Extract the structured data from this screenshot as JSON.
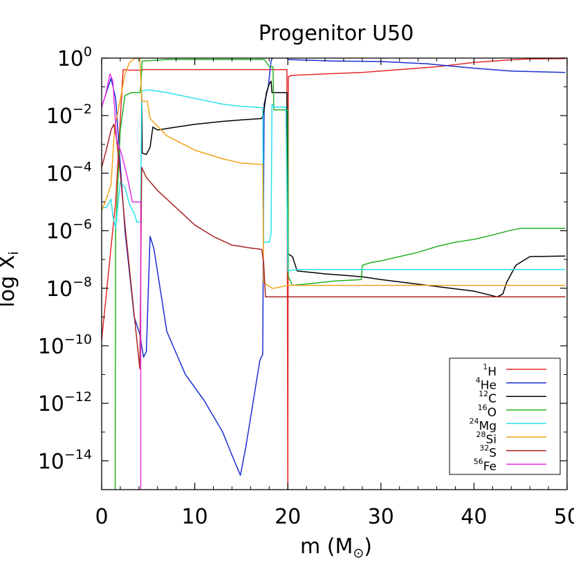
{
  "chart_data": {
    "type": "line",
    "title": "Progenitor U50",
    "xlabel": "m (M⊙)",
    "xlabel_text": "m",
    "xlabel_unit": "M",
    "ylabel": "log X_i",
    "ylabel_text": "log X",
    "ylabel_sub": "i",
    "xlim": [
      0,
      50
    ],
    "ylim_log10": [
      -15,
      0
    ],
    "x_ticks": [
      {
        "value": 0,
        "label": "0"
      },
      {
        "value": 10,
        "label": "10"
      },
      {
        "value": 20,
        "label": "20"
      },
      {
        "value": 30,
        "label": "30"
      },
      {
        "value": 40,
        "label": "40"
      },
      {
        "value": 50,
        "label": "50"
      }
    ],
    "y_ticks": [
      {
        "exp": 0,
        "base": "10",
        "sup": "0"
      },
      {
        "exp": -2,
        "base": "10",
        "sup": "−2"
      },
      {
        "exp": -4,
        "base": "10",
        "sup": "−4"
      },
      {
        "exp": -6,
        "base": "10",
        "sup": "−6"
      },
      {
        "exp": -8,
        "base": "10",
        "sup": "−8"
      },
      {
        "exp": -10,
        "base": "10",
        "sup": "−10"
      },
      {
        "exp": -12,
        "base": "10",
        "sup": "−12"
      },
      {
        "exp": -14,
        "base": "10",
        "sup": "−14"
      }
    ],
    "legend_position": "bottom-right",
    "series": [
      {
        "name": "1H",
        "mass": "1",
        "element": "H",
        "color": "#e8262a",
        "points": [
          [
            0,
            -9.8
          ],
          [
            1.5,
            -5
          ],
          [
            2.3,
            -0.4
          ],
          [
            3,
            -0.42
          ],
          [
            4.35,
            -0.42
          ],
          [
            4.4,
            -0.4
          ],
          [
            17.3,
            -0.4
          ],
          [
            18.1,
            -0.4
          ],
          [
            19.9,
            -0.4
          ],
          [
            19.98,
            -12
          ],
          [
            20.0,
            -15.2
          ],
          [
            20.05,
            -0.65
          ],
          [
            20.4,
            -0.6
          ],
          [
            24,
            -0.55
          ],
          [
            28,
            -0.5
          ],
          [
            32,
            -0.4
          ],
          [
            36,
            -0.3
          ],
          [
            40,
            -0.15
          ],
          [
            44,
            -0.06
          ],
          [
            46,
            -0.03
          ],
          [
            49.8,
            -0.02
          ]
        ]
      },
      {
        "name": "4He",
        "mass": "4",
        "element": "He",
        "color": "#1a2ed0",
        "points": [
          [
            0,
            -1.7
          ],
          [
            0.5,
            -1.2
          ],
          [
            1.0,
            -0.7
          ],
          [
            1.5,
            -1.4
          ],
          [
            2.5,
            -6
          ],
          [
            3.5,
            -9
          ],
          [
            4.1,
            -9.6
          ],
          [
            4.5,
            -10.4
          ],
          [
            4.8,
            -10.2
          ],
          [
            5.2,
            -6.2
          ],
          [
            5.6,
            -6.6
          ],
          [
            7,
            -9.5
          ],
          [
            9,
            -11
          ],
          [
            11,
            -11.9
          ],
          [
            13,
            -13
          ],
          [
            14,
            -13.8
          ],
          [
            14.9,
            -14.5
          ],
          [
            15.5,
            -13.5
          ],
          [
            16.5,
            -11.5
          ],
          [
            17.0,
            -10.5
          ],
          [
            17.3,
            -10.3
          ],
          [
            17.45,
            -1.6
          ],
          [
            17.9,
            -1.0
          ],
          [
            18.2,
            -0.1
          ],
          [
            18.4,
            0.05
          ],
          [
            19.8,
            0.05
          ],
          [
            19.95,
            -0.02
          ],
          [
            20.1,
            -0.05
          ],
          [
            25,
            -0.1
          ],
          [
            30,
            -0.12
          ],
          [
            35,
            -0.2
          ],
          [
            40,
            -0.35
          ],
          [
            44,
            -0.45
          ],
          [
            49.8,
            -0.5
          ]
        ]
      },
      {
        "name": "12C",
        "mass": "12",
        "element": "C",
        "color": "#000000",
        "points": [
          [
            4.3,
            -1.3
          ],
          [
            4.35,
            -3.3
          ],
          [
            4.8,
            -3.35
          ],
          [
            5.2,
            -3.1
          ],
          [
            5.5,
            -2.4
          ],
          [
            6,
            -2.5
          ],
          [
            8,
            -2.4
          ],
          [
            10,
            -2.3
          ],
          [
            13,
            -2.2
          ],
          [
            15,
            -2.15
          ],
          [
            17.2,
            -2.1
          ],
          [
            17.4,
            -1.9
          ],
          [
            17.7,
            -1.2
          ],
          [
            18.0,
            -0.9
          ],
          [
            18.2,
            -0.8
          ],
          [
            18.3,
            -1.2
          ],
          [
            19.9,
            -1.2
          ],
          [
            20.0,
            -6.8
          ],
          [
            20.5,
            -6.9
          ],
          [
            21,
            -7.4
          ],
          [
            24,
            -7.5
          ],
          [
            28,
            -7.6
          ],
          [
            30,
            -7.7
          ],
          [
            35,
            -7.9
          ],
          [
            40,
            -8.1
          ],
          [
            42.5,
            -8.3
          ],
          [
            43.1,
            -8.2
          ],
          [
            43.5,
            -7.8
          ],
          [
            44.5,
            -7.2
          ],
          [
            46,
            -6.9
          ],
          [
            49.8,
            -6.88
          ]
        ]
      },
      {
        "name": "16O",
        "mass": "16",
        "element": "O",
        "color": "#22b022",
        "points": [
          [
            1.45,
            -15.3
          ],
          [
            1.5,
            -6
          ],
          [
            2.0,
            -2.5
          ],
          [
            2.5,
            -1.3
          ],
          [
            3.2,
            -1.2
          ],
          [
            4.1,
            -1.2
          ],
          [
            4.2,
            -1.0
          ],
          [
            4.35,
            -0.1
          ],
          [
            7,
            -0.05
          ],
          [
            14,
            -0.05
          ],
          [
            17.3,
            -0.05
          ],
          [
            17.5,
            -0.05
          ],
          [
            18.0,
            -0.3
          ],
          [
            18.4,
            -0.3
          ],
          [
            18.5,
            -1.8
          ],
          [
            19.8,
            -1.8
          ],
          [
            20.0,
            -1.8
          ],
          [
            20.05,
            -7.6
          ],
          [
            20.5,
            -7.9
          ],
          [
            22,
            -7.85
          ],
          [
            25,
            -7.75
          ],
          [
            27.9,
            -7.7
          ],
          [
            28.0,
            -7.2
          ],
          [
            29,
            -7.1
          ],
          [
            30,
            -7.05
          ],
          [
            32,
            -6.9
          ],
          [
            34,
            -6.75
          ],
          [
            36,
            -6.55
          ],
          [
            38,
            -6.4
          ],
          [
            40,
            -6.3
          ],
          [
            42,
            -6.15
          ],
          [
            44,
            -5.98
          ],
          [
            45,
            -5.92
          ],
          [
            49.8,
            -5.92
          ]
        ]
      },
      {
        "name": "24Mg",
        "mass": "24",
        "element": "Mg",
        "color": "#28e0e8",
        "points": [
          [
            0,
            -5.2
          ],
          [
            0.5,
            -5.2
          ],
          [
            1.0,
            -4.9
          ],
          [
            1.2,
            -5.5
          ],
          [
            1.5,
            -5.9
          ],
          [
            2.0,
            -4.3
          ],
          [
            2.5,
            -4.5
          ],
          [
            3.0,
            -5.1
          ],
          [
            3.5,
            -5.4
          ],
          [
            3.8,
            -5.7
          ],
          [
            4.2,
            -5.7
          ],
          [
            4.25,
            -3.2
          ],
          [
            4.3,
            -1.15
          ],
          [
            5,
            -1.1
          ],
          [
            7,
            -1.2
          ],
          [
            10,
            -1.4
          ],
          [
            13,
            -1.6
          ],
          [
            15,
            -1.68
          ],
          [
            17.3,
            -1.72
          ],
          [
            17.4,
            -6.4
          ],
          [
            18.0,
            -6.4
          ],
          [
            18.2,
            -6.1
          ],
          [
            18.3,
            -1.6
          ],
          [
            18.5,
            -1.7
          ],
          [
            19.8,
            -1.7
          ],
          [
            20.0,
            -7.4
          ],
          [
            21,
            -7.35
          ],
          [
            49.8,
            -7.35
          ]
        ]
      },
      {
        "name": "28Si",
        "mass": "28",
        "element": "Si",
        "color": "#f2a318",
        "points": [
          [
            0,
            -5.3
          ],
          [
            0.5,
            -4.9
          ],
          [
            1.0,
            -4.4
          ],
          [
            1.4,
            -2.4
          ],
          [
            1.8,
            -1.8
          ],
          [
            2.5,
            -0.55
          ],
          [
            3.0,
            -0.15
          ],
          [
            3.5,
            -0.02
          ],
          [
            4.1,
            0.0
          ],
          [
            4.3,
            -1.5
          ],
          [
            4.9,
            -1.5
          ],
          [
            5.2,
            -2.1
          ],
          [
            7,
            -2.7
          ],
          [
            10,
            -3.2
          ],
          [
            13,
            -3.5
          ],
          [
            15,
            -3.65
          ],
          [
            17.3,
            -3.7
          ],
          [
            17.4,
            -7.8
          ],
          [
            18.3,
            -8.0
          ],
          [
            18.5,
            -8.0
          ],
          [
            20,
            -7.9
          ],
          [
            21,
            -7.9
          ],
          [
            49.8,
            -7.9
          ]
        ]
      },
      {
        "name": "32S",
        "mass": "32",
        "element": "S",
        "color": "#a82323",
        "points": [
          [
            0,
            -3.8
          ],
          [
            0.5,
            -3.2
          ],
          [
            1.0,
            -2.5
          ],
          [
            1.3,
            -2.3
          ],
          [
            1.6,
            -2.8
          ],
          [
            2.0,
            -4
          ],
          [
            2.5,
            -5.8
          ],
          [
            3.2,
            -8
          ],
          [
            4.1,
            -10.8
          ],
          [
            4.3,
            -3.8
          ],
          [
            4.8,
            -4.15
          ],
          [
            6,
            -4.6
          ],
          [
            8,
            -5.2
          ],
          [
            10,
            -5.8
          ],
          [
            12,
            -6.2
          ],
          [
            14,
            -6.5
          ],
          [
            16,
            -6.6
          ],
          [
            17.2,
            -6.65
          ],
          [
            17.4,
            -7.1
          ],
          [
            17.6,
            -8.3
          ],
          [
            18,
            -8.3
          ],
          [
            49.8,
            -8.3
          ]
        ]
      },
      {
        "name": "56Fe",
        "mass": "56",
        "element": "Fe",
        "color": "#e82ee8",
        "points": [
          [
            0,
            -1.7
          ],
          [
            0.4,
            -1.3
          ],
          [
            0.9,
            -0.55
          ],
          [
            1.2,
            -0.8
          ],
          [
            1.6,
            -2.8
          ],
          [
            2.2,
            -3.4
          ],
          [
            2.8,
            -4.2
          ],
          [
            3.3,
            -5.0
          ],
          [
            4.2,
            -5.0
          ],
          [
            4.2,
            -15.3
          ]
        ]
      }
    ]
  }
}
